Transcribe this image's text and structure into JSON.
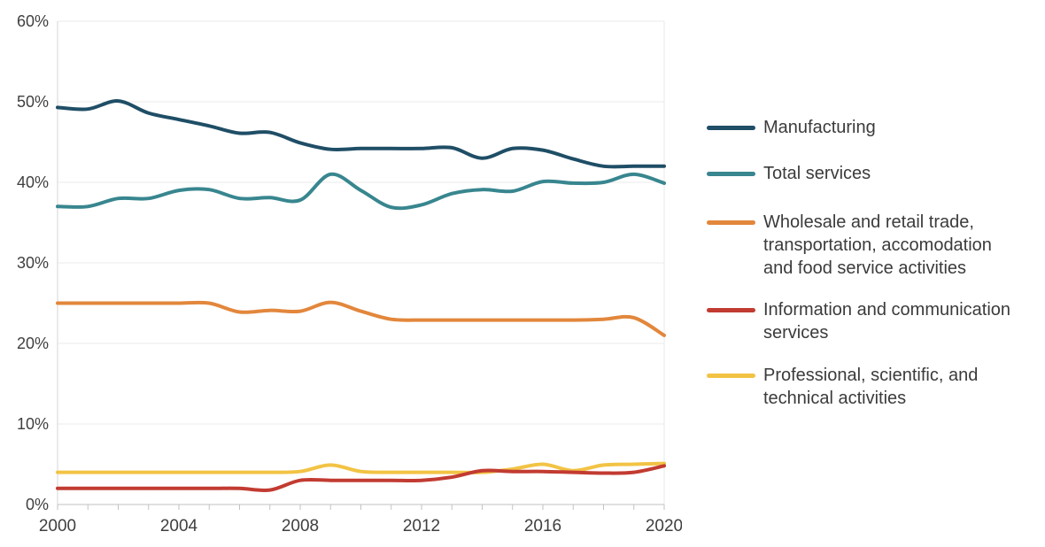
{
  "page": {
    "background": "#ffffff"
  },
  "chart_data": {
    "type": "line",
    "title": "",
    "xlabel": "",
    "ylabel": "",
    "xlim": [
      2000,
      2020
    ],
    "ylim": [
      0,
      60
    ],
    "grid": "horizontal",
    "legend_position": "right",
    "x": [
      2000,
      2001,
      2002,
      2003,
      2004,
      2005,
      2006,
      2007,
      2008,
      2009,
      2010,
      2011,
      2012,
      2013,
      2014,
      2015,
      2016,
      2017,
      2018,
      2019,
      2020
    ],
    "series": [
      {
        "id": "manufacturing",
        "name": "Manufacturing",
        "legend_lines": [
          "Manufacturing"
        ],
        "color": "#1f4e66",
        "values": [
          49.3,
          49.1,
          50.1,
          48.6,
          47.8,
          47.0,
          46.1,
          46.2,
          44.9,
          44.1,
          44.2,
          44.2,
          44.2,
          44.3,
          43.0,
          44.2,
          44.0,
          42.9,
          42.0,
          42.0,
          42.0
        ]
      },
      {
        "id": "total-services",
        "name": "Total services",
        "legend_lines": [
          "Total services"
        ],
        "color": "#38868f",
        "values": [
          37.0,
          37.0,
          38.0,
          38.0,
          39.0,
          39.1,
          38.0,
          38.1,
          37.8,
          41.0,
          39.0,
          36.9,
          37.2,
          38.6,
          39.1,
          38.9,
          40.1,
          39.9,
          40.0,
          41.0,
          39.9
        ]
      },
      {
        "id": "wholesale-retail-trade",
        "name": "Wholesale and retail trade, transportation, accomodation and food service activities",
        "legend_lines": [
          "Wholesale and retail trade,",
          "transportation, accomodation",
          "and food service activities"
        ],
        "color": "#e2873c",
        "values": [
          25.0,
          25.0,
          25.0,
          25.0,
          25.0,
          25.0,
          23.9,
          24.1,
          24.0,
          25.1,
          24.0,
          23.0,
          22.9,
          22.9,
          22.9,
          22.9,
          22.9,
          22.9,
          23.0,
          23.2,
          21.0
        ]
      },
      {
        "id": "information-communication",
        "name": "Information and communication services",
        "legend_lines": [
          "Information and communication",
          "services"
        ],
        "color": "#c23b31",
        "values": [
          2.0,
          2.0,
          2.0,
          2.0,
          2.0,
          2.0,
          2.0,
          1.8,
          3.0,
          3.0,
          3.0,
          3.0,
          3.0,
          3.4,
          4.2,
          4.1,
          4.1,
          4.0,
          3.9,
          4.0,
          4.8
        ]
      },
      {
        "id": "professional-scientific",
        "name": "Professional, scientific, and technical activities",
        "legend_lines": [
          "Professional, scientific, and",
          "technical activities"
        ],
        "color": "#f2c344",
        "values": [
          4.0,
          4.0,
          4.0,
          4.0,
          4.0,
          4.0,
          4.0,
          4.0,
          4.1,
          4.9,
          4.1,
          4.0,
          4.0,
          4.0,
          4.0,
          4.4,
          5.0,
          4.2,
          4.9,
          5.0,
          5.1
        ]
      }
    ],
    "xticks": [
      {
        "v": 2000,
        "label": "2000"
      },
      {
        "v": 2004,
        "label": "2004"
      },
      {
        "v": 2008,
        "label": "2008"
      },
      {
        "v": 2012,
        "label": "2012"
      },
      {
        "v": 2016,
        "label": "2016"
      },
      {
        "v": 2020,
        "label": "2020"
      }
    ],
    "yticks": [
      {
        "v": 0,
        "label": "0%"
      },
      {
        "v": 10,
        "label": "10%"
      },
      {
        "v": 20,
        "label": "20%"
      },
      {
        "v": 30,
        "label": "30%"
      },
      {
        "v": 40,
        "label": "40%"
      },
      {
        "v": 50,
        "label": "50%"
      },
      {
        "v": 60,
        "label": "60%"
      }
    ],
    "style": {
      "axis_text_color": "#3f3f3f",
      "grid_color": "#ebebeb",
      "left_axis_color": "#d6d6d6",
      "bottom_axis_color": "#c2c2c2",
      "right_border_color": "#e8e8e8",
      "tick_color": "#c2c2c2",
      "line_width": 4
    },
    "draw_order": [
      "manufacturing",
      "total-services",
      "wholesale-retail-trade",
      "professional-scientific",
      "information-communication"
    ]
  }
}
